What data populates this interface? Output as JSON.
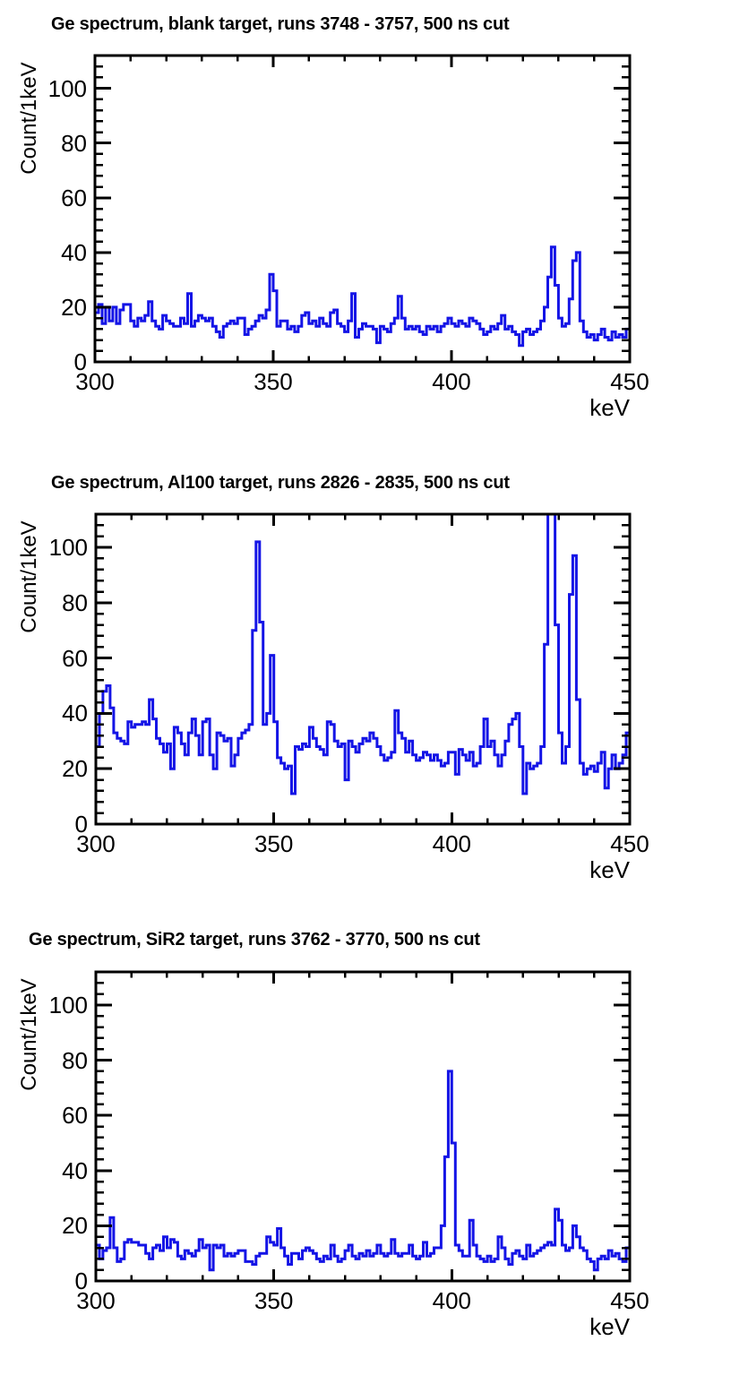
{
  "style": {
    "hist_color": "#1414e6",
    "frame_color": "#000000",
    "background": "#ffffff",
    "text_color": "#000000"
  },
  "chart_data": [
    {
      "type": "line",
      "subtype": "step-histogram",
      "title": "Ge spectrum, blank target, runs 3748 - 3757, 500 ns cut",
      "xlabel": "keV",
      "ylabel": "Count/1keV",
      "xlim": [
        300,
        450
      ],
      "ylim": [
        0,
        112
      ],
      "x_start_kev": 300,
      "bin_width_kev": 1,
      "x_ticks": [
        300,
        350,
        400,
        450
      ],
      "y_ticks": [
        0,
        20,
        40,
        60,
        80,
        100
      ],
      "values": [
        18,
        21,
        14,
        20,
        15,
        20,
        14,
        19,
        21,
        21,
        15,
        13,
        16,
        15,
        17,
        22,
        15,
        13,
        12,
        17,
        15,
        14,
        13,
        13,
        16,
        14,
        25,
        13,
        15,
        17,
        16,
        15,
        16,
        13,
        11,
        9,
        13,
        14,
        15,
        14,
        16,
        16,
        10,
        12,
        13,
        15,
        17,
        16,
        19,
        32,
        26,
        13,
        15,
        15,
        12,
        13,
        11,
        13,
        17,
        18,
        14,
        15,
        13,
        16,
        14,
        13,
        18,
        19,
        14,
        13,
        11,
        15,
        25,
        9,
        12,
        14,
        13,
        13,
        12,
        7,
        13,
        12,
        11,
        14,
        16,
        24,
        16,
        12,
        13,
        12,
        13,
        11,
        10,
        13,
        12,
        13,
        11,
        13,
        14,
        16,
        14,
        13,
        15,
        14,
        13,
        16,
        15,
        14,
        12,
        10,
        11,
        13,
        12,
        14,
        17,
        12,
        13,
        11,
        10,
        6,
        11,
        12,
        10,
        11,
        12,
        15,
        20,
        31,
        42,
        28,
        16,
        13,
        14,
        23,
        37,
        40,
        15,
        11,
        9,
        10,
        8,
        10,
        12,
        9,
        8,
        11,
        9,
        10,
        9,
        12
      ]
    },
    {
      "type": "line",
      "subtype": "step-histogram",
      "title": "Ge spectrum, Al100 target, runs 2826 - 2835, 500 ns cut",
      "xlabel": "keV",
      "ylabel": "Count/1keV",
      "xlim": [
        300,
        450
      ],
      "ylim": [
        0,
        112
      ],
      "x_start_kev": 300,
      "bin_width_kev": 1,
      "x_ticks": [
        300,
        350,
        400,
        450
      ],
      "y_ticks": [
        0,
        20,
        40,
        60,
        80,
        100
      ],
      "note": "Peak at ~427-428 keV exceeds the visible range; values of 112 are off-scale lower bounds (clipped at frame top).",
      "values": [
        28,
        40,
        48,
        50,
        42,
        33,
        31,
        30,
        29,
        37,
        35,
        36,
        36,
        37,
        36,
        45,
        38,
        31,
        29,
        26,
        29,
        20,
        35,
        33,
        29,
        25,
        33,
        38,
        32,
        25,
        37,
        38,
        25,
        20,
        33,
        32,
        30,
        31,
        21,
        25,
        31,
        33,
        34,
        36,
        70,
        102,
        73,
        36,
        40,
        61,
        37,
        24,
        22,
        20,
        21,
        11,
        28,
        27,
        29,
        28,
        35,
        31,
        28,
        27,
        25,
        37,
        36,
        30,
        28,
        29,
        16,
        30,
        28,
        26,
        29,
        31,
        30,
        33,
        31,
        28,
        25,
        23,
        24,
        26,
        41,
        33,
        31,
        26,
        30,
        25,
        23,
        24,
        26,
        25,
        23,
        25,
        23,
        21,
        22,
        26,
        26,
        18,
        27,
        25,
        23,
        26,
        21,
        22,
        28,
        38,
        28,
        30,
        25,
        21,
        25,
        30,
        36,
        38,
        40,
        28,
        11,
        22,
        20,
        21,
        22,
        28,
        65,
        112,
        112,
        72,
        33,
        22,
        28,
        83,
        97,
        45,
        22,
        18,
        20,
        21,
        19,
        22,
        26,
        13,
        20,
        25,
        20,
        22,
        25,
        33
      ]
    },
    {
      "type": "line",
      "subtype": "step-histogram",
      "title": "Ge spectrum, SiR2 target, runs 3762 - 3770, 500 ns cut",
      "xlabel": "keV",
      "ylabel": "Count/1keV",
      "xlim": [
        300,
        450
      ],
      "ylim": [
        0,
        112
      ],
      "x_start_kev": 300,
      "bin_width_kev": 1,
      "x_ticks": [
        300,
        350,
        400,
        450
      ],
      "y_ticks": [
        0,
        20,
        40,
        60,
        80,
        100
      ],
      "values": [
        13,
        8,
        11,
        12,
        23,
        12,
        7,
        8,
        14,
        15,
        14,
        14,
        13,
        13,
        10,
        8,
        12,
        13,
        11,
        16,
        12,
        15,
        14,
        9,
        8,
        11,
        10,
        9,
        11,
        15,
        12,
        13,
        4,
        13,
        12,
        13,
        9,
        10,
        9,
        10,
        11,
        11,
        7,
        7,
        6,
        9,
        10,
        10,
        16,
        14,
        13,
        19,
        12,
        9,
        6,
        10,
        10,
        8,
        11,
        12,
        11,
        10,
        8,
        7,
        9,
        8,
        13,
        9,
        7,
        8,
        11,
        13,
        9,
        8,
        10,
        9,
        11,
        9,
        10,
        13,
        10,
        9,
        10,
        15,
        10,
        9,
        10,
        10,
        13,
        9,
        8,
        9,
        14,
        9,
        10,
        12,
        12,
        20,
        45,
        76,
        50,
        13,
        11,
        9,
        9,
        22,
        13,
        9,
        8,
        7,
        9,
        7,
        8,
        16,
        12,
        8,
        6,
        10,
        11,
        9,
        8,
        13,
        9,
        10,
        11,
        12,
        13,
        14,
        13,
        26,
        22,
        13,
        11,
        12,
        20,
        16,
        12,
        11,
        8,
        7,
        4,
        8,
        9,
        8,
        11,
        9,
        10,
        8,
        7,
        12
      ]
    }
  ]
}
